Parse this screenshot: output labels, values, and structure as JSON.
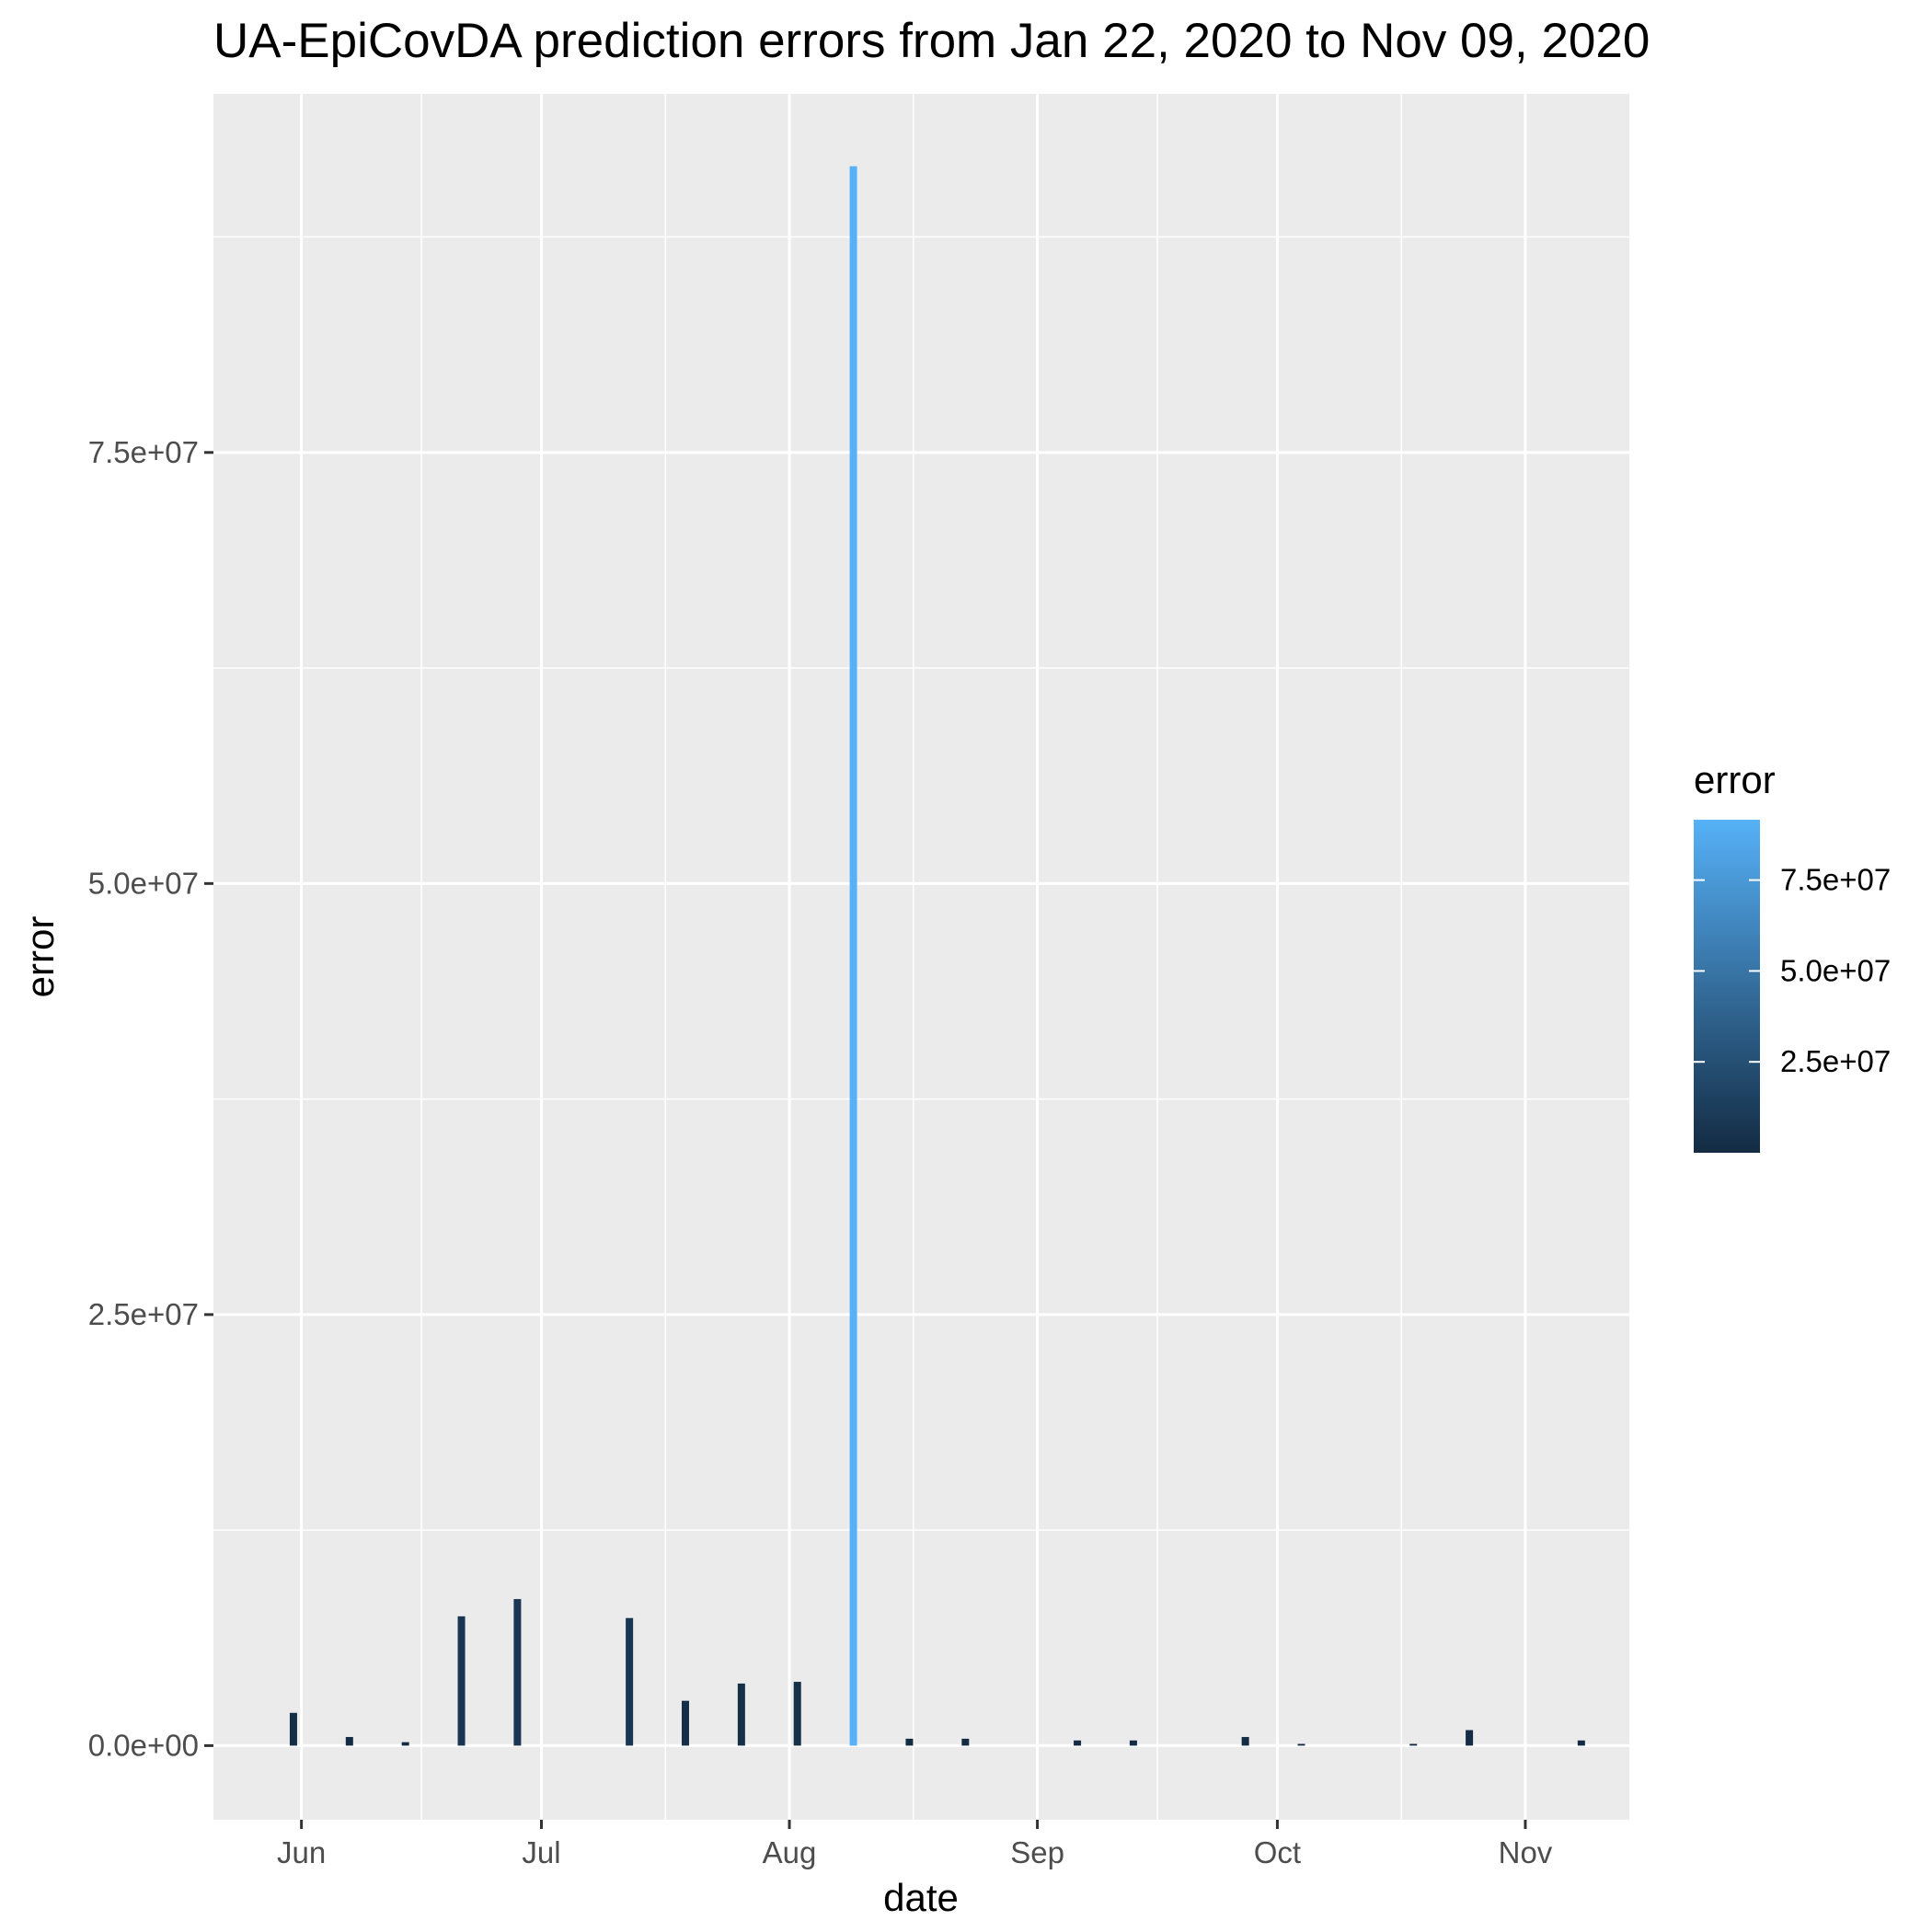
{
  "chart_data": {
    "type": "bar",
    "title": "UA-EpiCovDA prediction errors from Jan 22, 2020 to Nov 09, 2020",
    "xlabel": "date",
    "ylabel": "error",
    "x_ticks": [
      {
        "date": "2020-06-01",
        "label": "Jun"
      },
      {
        "date": "2020-07-01",
        "label": "Jul"
      },
      {
        "date": "2020-08-01",
        "label": "Aug"
      },
      {
        "date": "2020-09-01",
        "label": "Sep"
      },
      {
        "date": "2020-10-01",
        "label": "Oct"
      },
      {
        "date": "2020-11-01",
        "label": "Nov"
      }
    ],
    "y_ticks": [
      {
        "value": 0,
        "label": "0.0e+00"
      },
      {
        "value": 25000000,
        "label": "2.5e+07"
      },
      {
        "value": 50000000,
        "label": "5.0e+07"
      },
      {
        "value": 75000000,
        "label": "7.5e+07"
      }
    ],
    "xlim": [
      "2020-05-21",
      "2020-11-14"
    ],
    "ylim": [
      -4300000,
      95800000
    ],
    "grid": true,
    "legend": {
      "title": "error",
      "placement": "right",
      "color_low": "#132B43",
      "color_high": "#56B1F7",
      "range": [
        0,
        91600000
      ],
      "ticks": [
        {
          "value": 25000000,
          "label": "2.5e+07"
        },
        {
          "value": 50000000,
          "label": "5.0e+07"
        },
        {
          "value": 75000000,
          "label": "7.5e+07"
        }
      ]
    },
    "series": [
      {
        "x": [
          "2020-05-31",
          "2020-06-07",
          "2020-06-14",
          "2020-06-21",
          "2020-06-28",
          "2020-07-05",
          "2020-07-12",
          "2020-07-19",
          "2020-07-26",
          "2020-08-02",
          "2020-08-09",
          "2020-08-16",
          "2020-08-23",
          "2020-08-30",
          "2020-09-06",
          "2020-09-13",
          "2020-09-20",
          "2020-09-27",
          "2020-10-04",
          "2020-10-11",
          "2020-10-18",
          "2020-10-25",
          "2020-11-01",
          "2020-11-08"
        ],
        "values": [
          1900000,
          500000,
          200000,
          7500000,
          8500000,
          0,
          7400000,
          2600000,
          3600000,
          3700000,
          91600000,
          400000,
          400000,
          0,
          300000,
          300000,
          0,
          500000,
          100000,
          0,
          100000,
          900000,
          0,
          300000
        ]
      }
    ]
  }
}
